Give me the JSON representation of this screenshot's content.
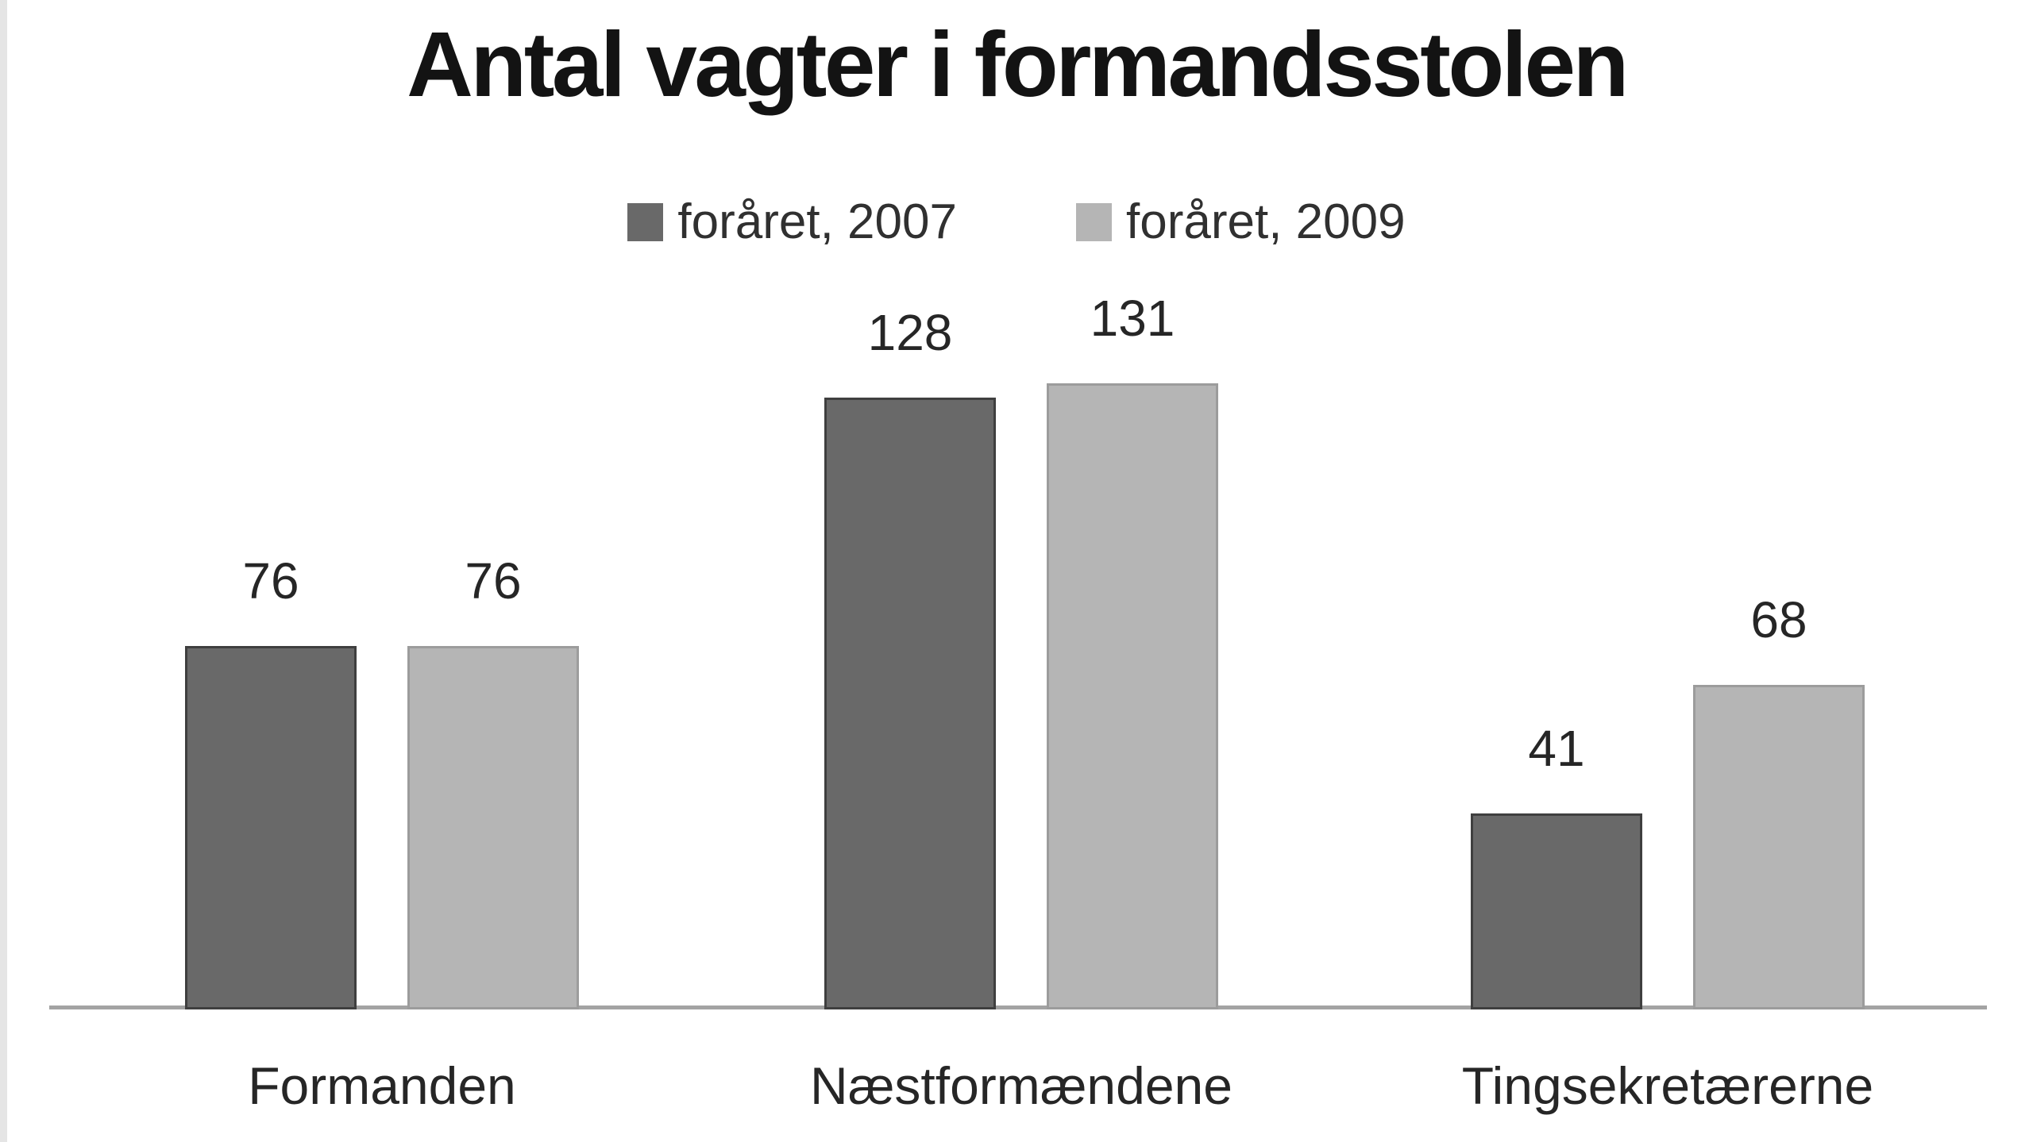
{
  "chart_data": {
    "type": "bar",
    "title": "Antal vagter i formandsstolen",
    "categories": [
      "Formanden",
      "Næstformændene",
      "Tingsekretærerne"
    ],
    "series": [
      {
        "name": "foråret, 2007",
        "color": "#696969",
        "border_color": "#3f3f3f",
        "values": [
          76,
          128,
          41
        ]
      },
      {
        "name": "foråret, 2009",
        "color": "#b5b5b5",
        "border_color": "#9c9c9c",
        "values": [
          76,
          131,
          68
        ]
      }
    ],
    "value_labels": [
      [
        "76",
        "128",
        "41"
      ],
      [
        "76",
        "131",
        "68"
      ]
    ],
    "ylim": [
      0,
      140
    ],
    "grid": false,
    "y_axis_visible": false,
    "legend_position": "top",
    "axis_line_color": "#a3a3a3",
    "background": "#ffffff",
    "title_color": "#131313",
    "text_color": "#262626"
  }
}
